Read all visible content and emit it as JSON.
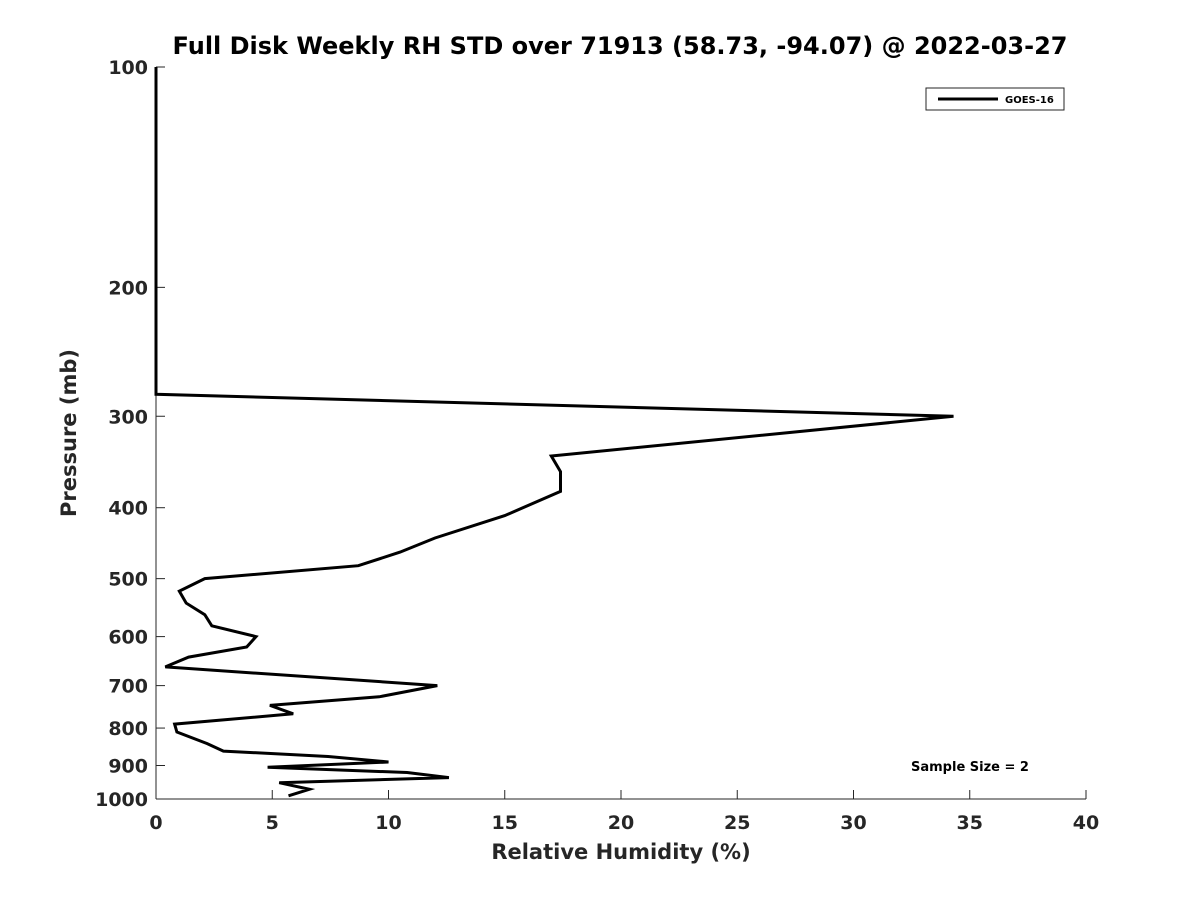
{
  "chart_data": {
    "type": "line",
    "title": "Full Disk Weekly RH STD over 71913 (58.73, -94.07) @ 2022-03-27",
    "xlabel": "Relative Humidity (%)",
    "ylabel": "Pressure (mb)",
    "xlim": [
      0,
      40
    ],
    "ylim": [
      100,
      1000
    ],
    "yscale": "log",
    "y_reversed": true,
    "xticks": [
      0,
      5,
      10,
      15,
      20,
      25,
      30,
      35,
      40
    ],
    "yticks": [
      100,
      200,
      300,
      400,
      500,
      600,
      700,
      800,
      900,
      1000
    ],
    "grid": false,
    "legend_position": "top-right",
    "annotation": "Sample Size = 2",
    "series": [
      {
        "name": "GOES-16",
        "color": "#000000",
        "points": [
          {
            "x": 0.0,
            "y": 100
          },
          {
            "x": 0.0,
            "y": 150
          },
          {
            "x": 0.0,
            "y": 200
          },
          {
            "x": 0.0,
            "y": 250
          },
          {
            "x": 0.0,
            "y": 280
          },
          {
            "x": 34.3,
            "y": 300
          },
          {
            "x": 17.0,
            "y": 340
          },
          {
            "x": 17.4,
            "y": 357
          },
          {
            "x": 17.4,
            "y": 380
          },
          {
            "x": 15.0,
            "y": 410
          },
          {
            "x": 12.0,
            "y": 440
          },
          {
            "x": 10.5,
            "y": 460
          },
          {
            "x": 8.7,
            "y": 480
          },
          {
            "x": 2.1,
            "y": 500
          },
          {
            "x": 1.0,
            "y": 520
          },
          {
            "x": 1.3,
            "y": 540
          },
          {
            "x": 2.1,
            "y": 560
          },
          {
            "x": 2.4,
            "y": 580
          },
          {
            "x": 4.3,
            "y": 600
          },
          {
            "x": 3.9,
            "y": 620
          },
          {
            "x": 1.4,
            "y": 640
          },
          {
            "x": 0.4,
            "y": 660
          },
          {
            "x": 12.1,
            "y": 700
          },
          {
            "x": 9.6,
            "y": 725
          },
          {
            "x": 4.9,
            "y": 745
          },
          {
            "x": 5.9,
            "y": 765
          },
          {
            "x": 0.8,
            "y": 790
          },
          {
            "x": 0.9,
            "y": 810
          },
          {
            "x": 2.2,
            "y": 840
          },
          {
            "x": 2.9,
            "y": 860
          },
          {
            "x": 7.4,
            "y": 875
          },
          {
            "x": 10.0,
            "y": 890
          },
          {
            "x": 4.8,
            "y": 905
          },
          {
            "x": 10.8,
            "y": 920
          },
          {
            "x": 12.6,
            "y": 935
          },
          {
            "x": 5.3,
            "y": 950
          },
          {
            "x": 6.6,
            "y": 970
          },
          {
            "x": 5.7,
            "y": 990
          }
        ]
      }
    ]
  }
}
